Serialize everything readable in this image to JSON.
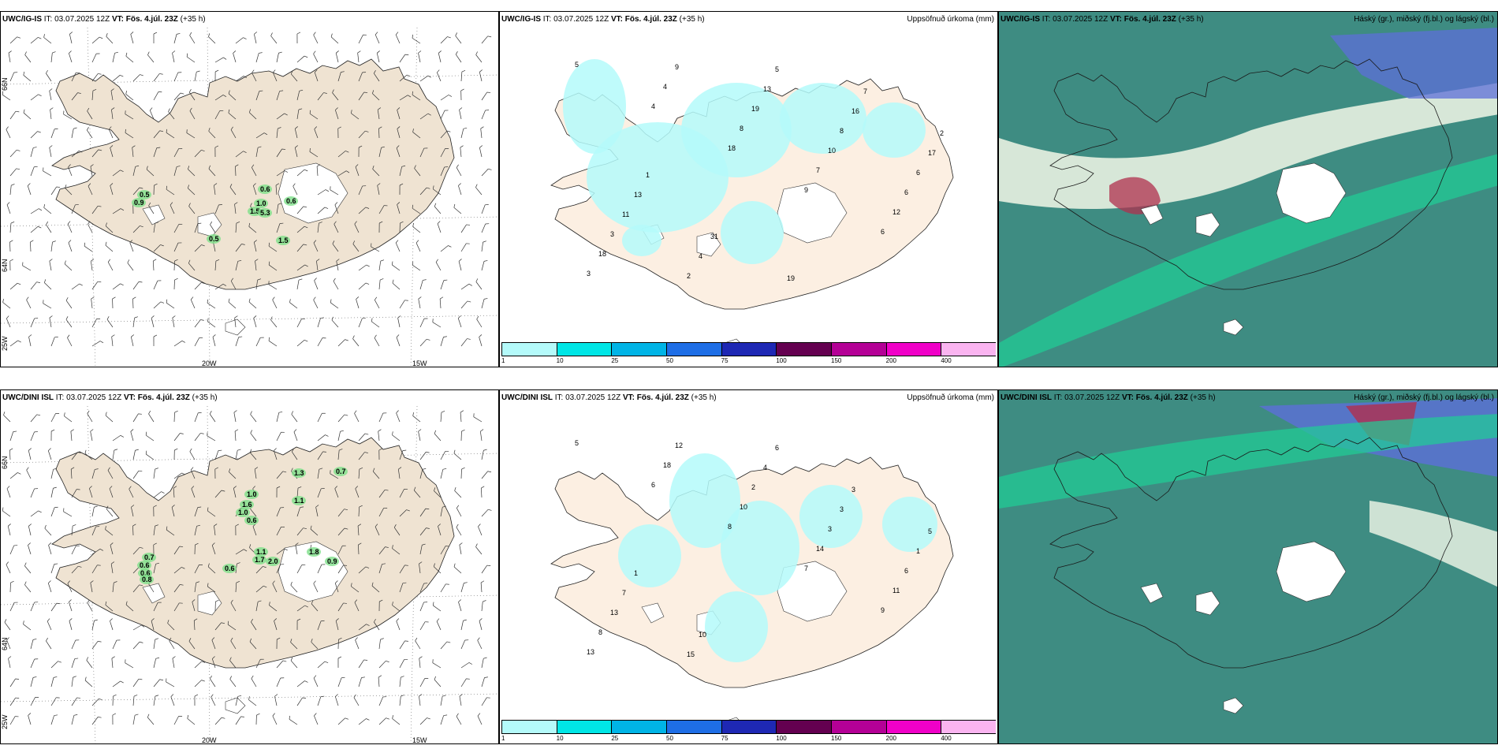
{
  "issue_time": "IT: 03.07.2025 12Z",
  "valid_time": "VT: Fös. 4.júl. 23Z",
  "lead": "(+35 h)",
  "rows": [
    {
      "model": "UWC/IG-IS",
      "wind_vals": [
        "0.5",
        "0.9",
        "0.6",
        "1.0",
        "1.5",
        "5.3",
        "0.6",
        "0.5",
        "1.5"
      ],
      "precip_vals": [
        "5",
        "4",
        "18",
        "9",
        "6",
        "3",
        "4",
        "8",
        "7",
        "12",
        "18",
        "9",
        "19",
        "10",
        "6",
        "3",
        "2",
        "13",
        "8",
        "6",
        "11",
        "4",
        "5",
        "16",
        "17",
        "13",
        "31",
        "19",
        "7",
        "2",
        "1"
      ]
    },
    {
      "model": "UWC/DINI ISL",
      "wind_vals": [
        "1.0",
        "1.6",
        "1.0",
        "0.6",
        "1.3",
        "1.1",
        "0.7",
        "1.1",
        "1.7",
        "2.0",
        "1.8",
        "0.9",
        "0.7",
        "0.6",
        "0.6",
        "0.8",
        "0.6"
      ],
      "precip_vals": [
        "5",
        "6",
        "8",
        "7",
        "9",
        "13",
        "18",
        "10",
        "14",
        "11",
        "8",
        "12",
        "2",
        "3",
        "6",
        "13",
        "15",
        "4",
        "3",
        "1",
        "7",
        "10",
        "6",
        "3",
        "5",
        "1"
      ]
    }
  ],
  "precip_title": "Uppsöfnuð úrkoma (mm)",
  "cloud_title": "Háský (gr.), miðský (fj.bl.) og lágský (bl.)",
  "lon_labels": [
    "20W",
    "15W"
  ],
  "lat_labels": [
    "66N",
    "64N",
    "25W"
  ],
  "colorbar": {
    "ticks": [
      "1",
      "10",
      "25",
      "50",
      "75",
      "100",
      "150",
      "200",
      "400"
    ],
    "colors": [
      "#b4fafa",
      "#00e6e6",
      "#00b4e6",
      "#1e6ee6",
      "#1e28b4",
      "#640050",
      "#b40096",
      "#f000c8",
      "#fab4f0"
    ]
  }
}
